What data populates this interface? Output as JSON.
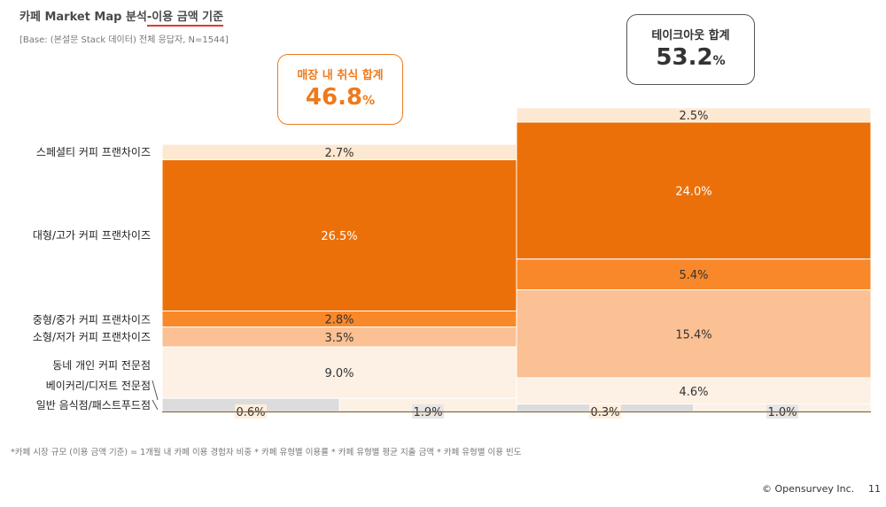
{
  "title": {
    "main": "카페 Market Map 분석",
    "highlight": "-이용 금액 기준"
  },
  "base_note": "[Base: (본설문 Stack 데이터) 전체 응답자, N=1544]",
  "groups": {
    "dine_in": {
      "label": "매장 내 취식 합계",
      "value": "46.8",
      "unit": "%"
    },
    "takeout": {
      "label": "테이크아웃 합계",
      "value": "53.2",
      "unit": "%"
    }
  },
  "footnote": "*카페 시장 규모 (이용 금액 기준) = 1개월 내 카페 이용 경험자 비중 * 카페 유형별 이용률 * 카페 유형별 평균 지출 금액 * 카페 유형별 이용 빈도",
  "copyright": "© Opensurvey Inc.",
  "page_number": "11",
  "colors": {
    "specialty": "#fde8d2",
    "large_premium": "#ec7009",
    "mid": "#f9882a",
    "small_low": "#fbc093",
    "local": "#fdf0e4",
    "bakery": "#fdf0e4",
    "fastfood": "#dcdcdc",
    "dine_border": "#ee7a1c",
    "takeout_border": "#555555"
  },
  "chart_data": {
    "type": "stacked_bar",
    "title": "카페 Market Map 분석-이용 금액 기준",
    "unit": "%",
    "categories": [
      "스페셜티 커피 프랜차이즈",
      "대형/고가 커피 프랜차이즈",
      "중형/중가 커피 프랜차이즈",
      "소형/저가 커피 프랜차이즈",
      "동네 개인 커피 전문점",
      "베이커리/디저트 전문점",
      "일반 음식점/패스트푸드점"
    ],
    "series": [
      {
        "name": "매장 내 취식",
        "total": 46.8,
        "values": [
          2.7,
          26.5,
          2.8,
          3.5,
          9.0,
          1.9,
          0.6
        ]
      },
      {
        "name": "테이크아웃",
        "total": 53.2,
        "values": [
          2.5,
          24.0,
          5.4,
          15.4,
          4.6,
          1.0,
          0.3
        ]
      }
    ],
    "labels": {
      "dine_in": [
        "2.7%",
        "26.5%",
        "2.8%",
        "3.5%",
        "9.0%",
        "1.9%",
        "0.6%"
      ],
      "takeout": [
        "2.5%",
        "24.0%",
        "5.4%",
        "15.4%",
        "4.6%",
        "1.0%",
        "0.3%"
      ]
    }
  }
}
